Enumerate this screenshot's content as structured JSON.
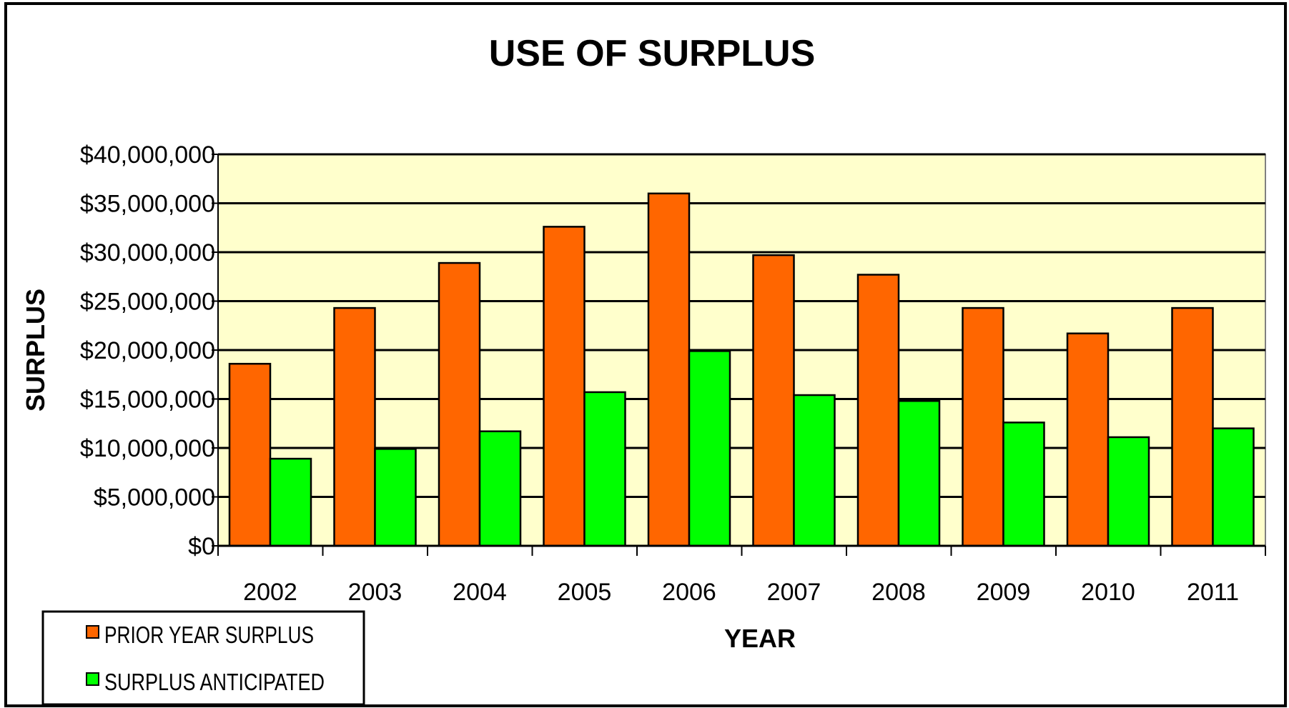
{
  "chart_data": {
    "type": "bar",
    "title": "USE OF SURPLUS",
    "xlabel": "YEAR",
    "ylabel": "SURPLUS",
    "categories": [
      "2002",
      "2003",
      "2004",
      "2005",
      "2006",
      "2007",
      "2008",
      "2009",
      "2010",
      "2011"
    ],
    "series": [
      {
        "name": "PRIOR YEAR SURPLUS",
        "color": "#ff6600",
        "values": [
          18600000,
          24300000,
          28900000,
          32600000,
          36000000,
          29700000,
          27700000,
          24300000,
          21700000,
          24300000
        ]
      },
      {
        "name": "SURPLUS ANTICIPATED",
        "color": "#00ff00",
        "values": [
          8900000,
          9900000,
          11700000,
          15700000,
          19900000,
          15400000,
          14800000,
          12600000,
          11100000,
          12000000
        ]
      }
    ],
    "ylim": [
      0,
      40000000
    ],
    "yticks": [
      0,
      5000000,
      10000000,
      15000000,
      20000000,
      25000000,
      30000000,
      35000000,
      40000000
    ],
    "ytick_labels": [
      "$0",
      "$5,000,000",
      "$10,000,000",
      "$15,000,000",
      "$20,000,000",
      "$25,000,000",
      "$30,000,000",
      "$35,000,000",
      "$40,000,000"
    ],
    "grid": true,
    "legend_position": "bottom-left",
    "plot_background": "#ffffcc"
  }
}
